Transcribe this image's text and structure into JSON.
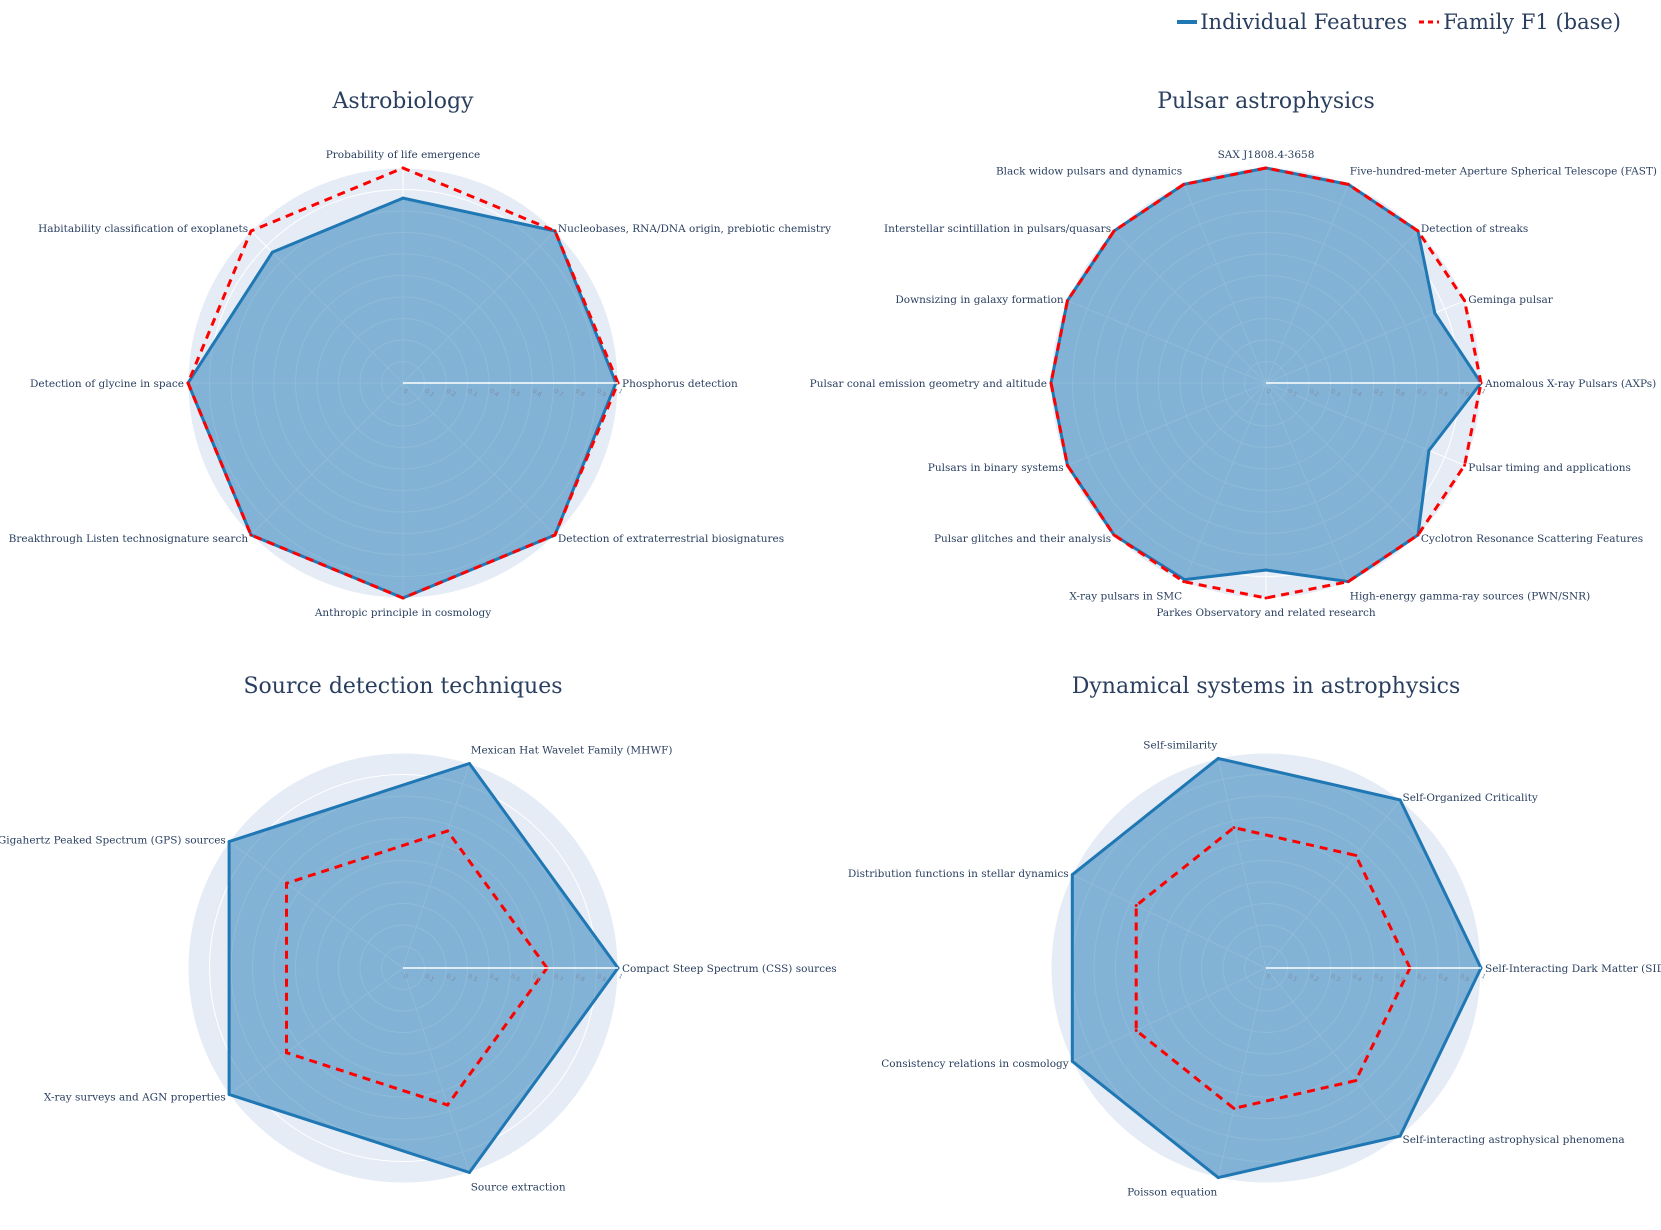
{
  "legend": {
    "individual_label": "Individual Features",
    "family_label": "Family F1 (base)"
  },
  "colors": {
    "individual_line": "#1f77b4",
    "individual_fill": "rgba(31,119,180,0.5)",
    "family_line": "#ff0000",
    "polar_background": "#e5ecf6",
    "grid": "#ffffff"
  },
  "chart_data": [
    {
      "type": "radar",
      "title": "Astrobiology",
      "radial_range": [
        0,
        1
      ],
      "radial_ticks": [
        "0",
        "0.1",
        "0.2",
        "0.3",
        "0.4",
        "0.5",
        "0.6",
        "0.7",
        "0.8",
        "0.9",
        "1"
      ],
      "categories": [
        "Phosphorus detection",
        "Nucleobases, RNA/DNA origin, prebiotic chemistry",
        "Probability of life emergence",
        "Habitability classification of exoplanets",
        "Detection of glycine in space",
        "Breakthrough Listen technosignature search",
        "Anthropic principle in cosmology",
        "Detection of extraterrestrial biosignatures"
      ],
      "series": [
        {
          "name": "Individual Features",
          "values": [
            0.99,
            1.0,
            0.86,
            0.86,
            1.0,
            1.0,
            1.0,
            1.0
          ]
        },
        {
          "name": "Family F1 (base)",
          "values": [
            1.0,
            1.0,
            1.0,
            1.0,
            1.0,
            1.0,
            1.0,
            1.0
          ]
        }
      ]
    },
    {
      "type": "radar",
      "title": "Pulsar astrophysics",
      "radial_range": [
        0,
        1
      ],
      "radial_ticks": [
        "0",
        "0.1",
        "0.2",
        "0.3",
        "0.4",
        "0.5",
        "0.6",
        "0.7",
        "0.8",
        "0.9",
        "1"
      ],
      "categories": [
        "Anomalous X-ray Pulsars (AXPs)",
        "Geminga pulsar",
        "Detection of streaks",
        "Five-hundred-meter Aperture Spherical Telescope (FAST)",
        "SAX J1808.4-3658",
        "Black widow pulsars and dynamics",
        "Interstellar scintillation in pulsars/quasars",
        "Downsizing in galaxy formation",
        "Pulsar conal emission geometry and altitude",
        "Pulsars in binary systems",
        "Pulsar glitches and their analysis",
        "X-ray pulsars in SMC",
        "Parkes Observatory and related research",
        "High-energy gamma-ray sources (PWN/SNR)",
        "Cyclotron Resonance Scattering Features",
        "Pulsar timing and applications"
      ],
      "series": [
        {
          "name": "Individual Features",
          "values": [
            1.0,
            0.85,
            1.0,
            1.0,
            1.0,
            1.0,
            1.0,
            1.0,
            1.0,
            1.0,
            1.0,
            0.99,
            0.87,
            1.0,
            1.0,
            0.82
          ]
        },
        {
          "name": "Family F1 (base)",
          "values": [
            1.0,
            1.0,
            1.0,
            1.0,
            1.0,
            1.0,
            1.0,
            1.0,
            1.0,
            1.0,
            1.0,
            1.0,
            1.0,
            1.0,
            1.0,
            1.0
          ]
        }
      ]
    },
    {
      "type": "radar",
      "title": "Source detection techniques",
      "radial_range": [
        0,
        1
      ],
      "radial_ticks": [
        "0",
        "0.1",
        "0.2",
        "0.3",
        "0.4",
        "0.5",
        "0.6",
        "0.7",
        "0.8",
        "0.9",
        "1"
      ],
      "categories": [
        "Compact Steep Spectrum (CSS) sources",
        "Mexican Hat Wavelet Family (MHWF)",
        "Gigahertz Peaked Spectrum (GPS) sources",
        "X-ray surveys and AGN properties",
        "Source extraction"
      ],
      "series": [
        {
          "name": "Individual Features",
          "values": [
            1.0,
            1.0,
            1.0,
            1.0,
            1.0
          ]
        },
        {
          "name": "Family F1 (base)",
          "values": [
            0.67,
            0.67,
            0.67,
            0.67,
            0.67
          ]
        }
      ]
    },
    {
      "type": "radar",
      "title": "Dynamical systems in astrophysics",
      "radial_range": [
        0,
        1
      ],
      "radial_ticks": [
        "0",
        "0.1",
        "0.2",
        "0.3",
        "0.4",
        "0.5",
        "0.6",
        "0.7",
        "0.8",
        "0.9",
        "1"
      ],
      "categories": [
        "Self-Interacting Dark Matter (SIDM)",
        "Self-Organized Criticality",
        "Self-similarity",
        "Distribution functions in stellar dynamics",
        "Consistency relations in cosmology",
        "Poisson equation",
        "Self-interacting astrophysical phenomena"
      ],
      "series": [
        {
          "name": "Individual Features",
          "values": [
            1.0,
            1.0,
            1.0,
            1.0,
            1.0,
            1.0,
            1.0
          ]
        },
        {
          "name": "Family F1 (base)",
          "values": [
            0.67,
            0.67,
            0.67,
            0.67,
            0.67,
            0.67,
            0.67
          ]
        }
      ]
    }
  ]
}
